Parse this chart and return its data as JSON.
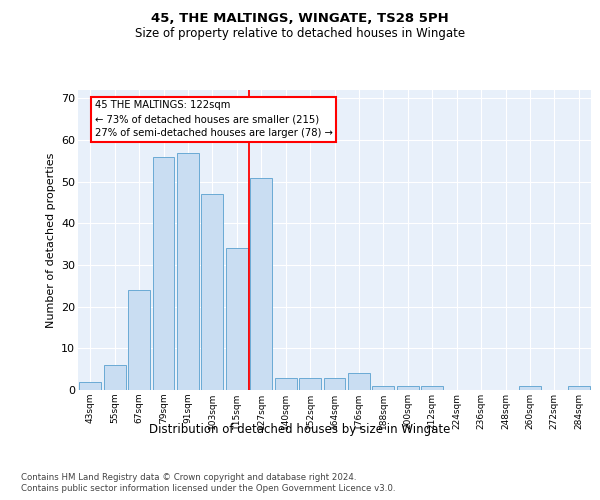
{
  "title1": "45, THE MALTINGS, WINGATE, TS28 5PH",
  "title2": "Size of property relative to detached houses in Wingate",
  "xlabel": "Distribution of detached houses by size in Wingate",
  "ylabel": "Number of detached properties",
  "bar_labels": [
    "43sqm",
    "55sqm",
    "67sqm",
    "79sqm",
    "91sqm",
    "103sqm",
    "115sqm",
    "127sqm",
    "140sqm",
    "152sqm",
    "164sqm",
    "176sqm",
    "188sqm",
    "200sqm",
    "212sqm",
    "224sqm",
    "236sqm",
    "248sqm",
    "260sqm",
    "272sqm",
    "284sqm"
  ],
  "bar_values": [
    2,
    6,
    24,
    56,
    57,
    47,
    34,
    51,
    3,
    3,
    3,
    4,
    1,
    1,
    1,
    0,
    0,
    0,
    1,
    0,
    1
  ],
  "bar_color": "#c9ddf2",
  "bar_edge_color": "#6aaad4",
  "property_label": "45 THE MALTINGS: 122sqm",
  "annotation_line1": "← 73% of detached houses are smaller (215)",
  "annotation_line2": "27% of semi-detached houses are larger (78) →",
  "vline_x_index": 6.5,
  "ylim": [
    0,
    72
  ],
  "yticks": [
    0,
    10,
    20,
    30,
    40,
    50,
    60,
    70
  ],
  "footer1": "Contains HM Land Registry data © Crown copyright and database right 2024.",
  "footer2": "Contains public sector information licensed under the Open Government Licence v3.0.",
  "background_color": "#e8f0fa",
  "grid_color": "#ffffff"
}
